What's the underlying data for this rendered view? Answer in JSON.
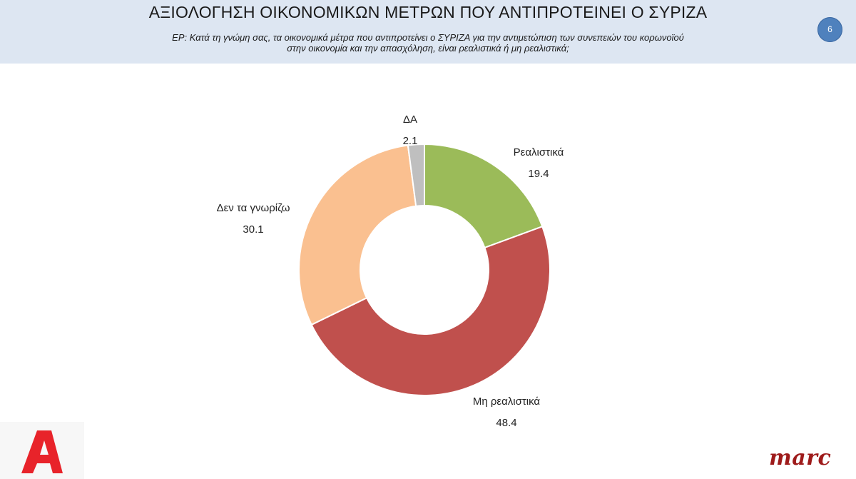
{
  "header": {
    "title": "ΑΞΙΟΛΟΓΗΣΗ ΟΙΚΟΝΟΜΙΚΩΝ ΜΕΤΡΩΝ ΠΟΥ ΑΝΤΙΠΡΟΤΕΙΝΕΙ Ο ΣΥΡΙΖΑ",
    "question_line1": "ΕΡ: Κατά τη γνώμη σας, τα οικονομικά μέτρα που αντιπροτείνει ο ΣΥΡΙΖΑ για την αντιμετώπιση των συνεπειών του κορωνοϊού",
    "question_line2": "στην οικονομία και την απασχόληση, είναι ρεαλιστικά ή μη ρεαλιστικά;",
    "page_number": "6"
  },
  "chart_data": {
    "type": "pie",
    "subtype": "donut",
    "legend": "none",
    "slices": [
      {
        "label": "Ρεαλιστικά",
        "value": 19.4,
        "color": "#9bbb59"
      },
      {
        "label": "Μη ρεαλιστικά",
        "value": 48.4,
        "color": "#c0504d"
      },
      {
        "label": "Δεν τα γνωρίζω",
        "value": 30.1,
        "color": "#fac090"
      },
      {
        "label": "ΔΑ",
        "value": 2.1,
        "color": "#bfbfbf"
      }
    ]
  },
  "logos": {
    "broadcaster": "Α",
    "pollster": "marc"
  }
}
